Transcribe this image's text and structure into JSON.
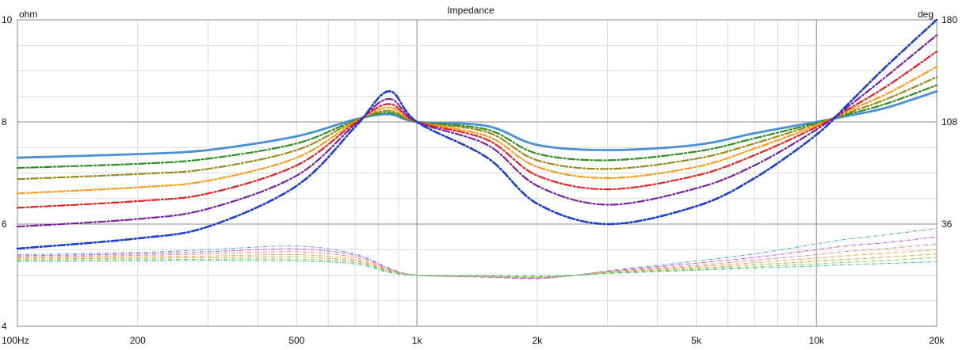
{
  "chart_data": {
    "type": "line",
    "title": "Impedance",
    "left_unit": "ohm",
    "right_unit": "deg",
    "x_scale": "log",
    "xlim": [
      100,
      20000
    ],
    "ylim_left": [
      4,
      10
    ],
    "ylim_right": [
      -36,
      180
    ],
    "x_ticks": [
      {
        "value": 100,
        "label": "100Hz"
      },
      {
        "value": 200,
        "label": "200"
      },
      {
        "value": 500,
        "label": "500"
      },
      {
        "value": 1000,
        "label": "1k"
      },
      {
        "value": 2000,
        "label": "2k"
      },
      {
        "value": 5000,
        "label": "5k"
      },
      {
        "value": 10000,
        "label": "10k"
      },
      {
        "value": 20000,
        "label": "20k"
      }
    ],
    "y_ticks_left": [
      {
        "value": 10,
        "label": "10"
      },
      {
        "value": 8,
        "label": "8"
      },
      {
        "value": 6,
        "label": "6"
      },
      {
        "value": 4,
        "label": "4"
      }
    ],
    "y_ticks_right": [
      {
        "value": 180,
        "label": "180"
      },
      {
        "value": 108,
        "label": "108"
      },
      {
        "value": 36,
        "label": "36"
      }
    ],
    "grid": true,
    "impedance_x": [
      100,
      200,
      300,
      500,
      700,
      850,
      1000,
      1500,
      2000,
      3000,
      5000,
      7000,
      10000,
      12000,
      15000,
      20000
    ],
    "impedance_series": [
      {
        "color": "#1a3fd1",
        "style": "dashdot",
        "width": 2.6,
        "values": [
          5.52,
          5.72,
          5.95,
          6.75,
          7.9,
          8.6,
          8.0,
          7.3,
          6.4,
          6.0,
          6.35,
          6.9,
          7.75,
          8.35,
          9.1,
          10.0
        ]
      },
      {
        "color": "#7a1fa2",
        "style": "dashdot",
        "width": 2.2,
        "values": [
          5.95,
          6.1,
          6.3,
          6.95,
          7.95,
          8.45,
          8.0,
          7.55,
          6.75,
          6.38,
          6.7,
          7.15,
          7.85,
          8.3,
          8.9,
          9.7
        ]
      },
      {
        "color": "#e82020",
        "style": "dashdot",
        "width": 2.2,
        "values": [
          6.32,
          6.45,
          6.6,
          7.15,
          7.98,
          8.35,
          8.0,
          7.65,
          6.95,
          6.68,
          6.95,
          7.35,
          7.9,
          8.25,
          8.7,
          9.38
        ]
      },
      {
        "color": "#ff9c1c",
        "style": "dashdot",
        "width": 2.2,
        "values": [
          6.6,
          6.72,
          6.85,
          7.3,
          8.0,
          8.28,
          8.0,
          7.72,
          7.12,
          6.9,
          7.12,
          7.48,
          7.93,
          8.22,
          8.55,
          9.08
        ]
      },
      {
        "color": "#9c8a1c",
        "style": "dashdot",
        "width": 2.2,
        "values": [
          6.88,
          6.98,
          7.08,
          7.45,
          8.02,
          8.22,
          8.0,
          7.8,
          7.25,
          7.08,
          7.28,
          7.58,
          7.96,
          8.18,
          8.45,
          8.88
        ]
      },
      {
        "color": "#2c8f1f",
        "style": "dashdot",
        "width": 2.2,
        "values": [
          7.1,
          7.18,
          7.28,
          7.58,
          8.03,
          8.18,
          8.0,
          7.85,
          7.38,
          7.25,
          7.42,
          7.68,
          7.98,
          8.15,
          8.36,
          8.72
        ]
      },
      {
        "color": "#4a8fd6",
        "style": "solid",
        "width": 2.8,
        "values": [
          7.3,
          7.37,
          7.45,
          7.72,
          8.05,
          8.15,
          8.0,
          7.92,
          7.55,
          7.45,
          7.55,
          7.78,
          8.0,
          8.12,
          8.28,
          8.6
        ]
      }
    ],
    "phase_x": [
      100,
      200,
      300,
      500,
      700,
      850,
      1000,
      1500,
      2000,
      2500,
      3000,
      5000,
      7000,
      10000,
      12000,
      15000,
      20000
    ],
    "phase_series": [
      {
        "color": "#4aa8c8",
        "values": [
          14.5,
          16,
          18,
          20.5,
          15,
          5,
          0,
          -1.5,
          -2.5,
          0,
          3,
          10,
          15,
          22,
          25.5,
          28.5,
          33
        ]
      },
      {
        "color": "#d23ee8",
        "values": [
          13.7,
          15,
          16.5,
          18.5,
          14,
          4.5,
          0,
          -1.3,
          -2.2,
          0,
          2.7,
          8.5,
          12.5,
          18,
          20.7,
          23,
          27
        ]
      },
      {
        "color": "#e88090",
        "values": [
          12.9,
          14,
          15,
          16.5,
          12.5,
          4,
          0,
          -1.1,
          -1.9,
          0,
          2.4,
          7,
          10.5,
          14.5,
          16.8,
          18.8,
          22
        ]
      },
      {
        "color": "#e8a030",
        "values": [
          12.1,
          13,
          13.5,
          14.5,
          11,
          3.5,
          0,
          -0.9,
          -1.6,
          0,
          2.1,
          6,
          8.8,
          12,
          13.8,
          15.5,
          18
        ]
      },
      {
        "color": "#b8a838",
        "values": [
          11.3,
          12,
          12.3,
          12.8,
          10,
          3,
          0,
          -0.7,
          -1.3,
          0,
          1.8,
          5,
          7.3,
          9.8,
          11.2,
          12.7,
          15
        ]
      },
      {
        "color": "#88c838",
        "values": [
          10.5,
          11,
          11.2,
          11.3,
          9,
          2.5,
          0,
          -0.5,
          -1,
          0,
          1.5,
          4.2,
          6,
          8,
          9.2,
          10.4,
          12.5
        ]
      },
      {
        "color": "#34c0a0",
        "values": [
          9.7,
          10,
          10.2,
          10,
          8,
          2,
          0,
          -0.3,
          -0.7,
          0,
          1.2,
          3.5,
          5,
          6.5,
          7.4,
          8.3,
          9.5
        ]
      }
    ]
  }
}
